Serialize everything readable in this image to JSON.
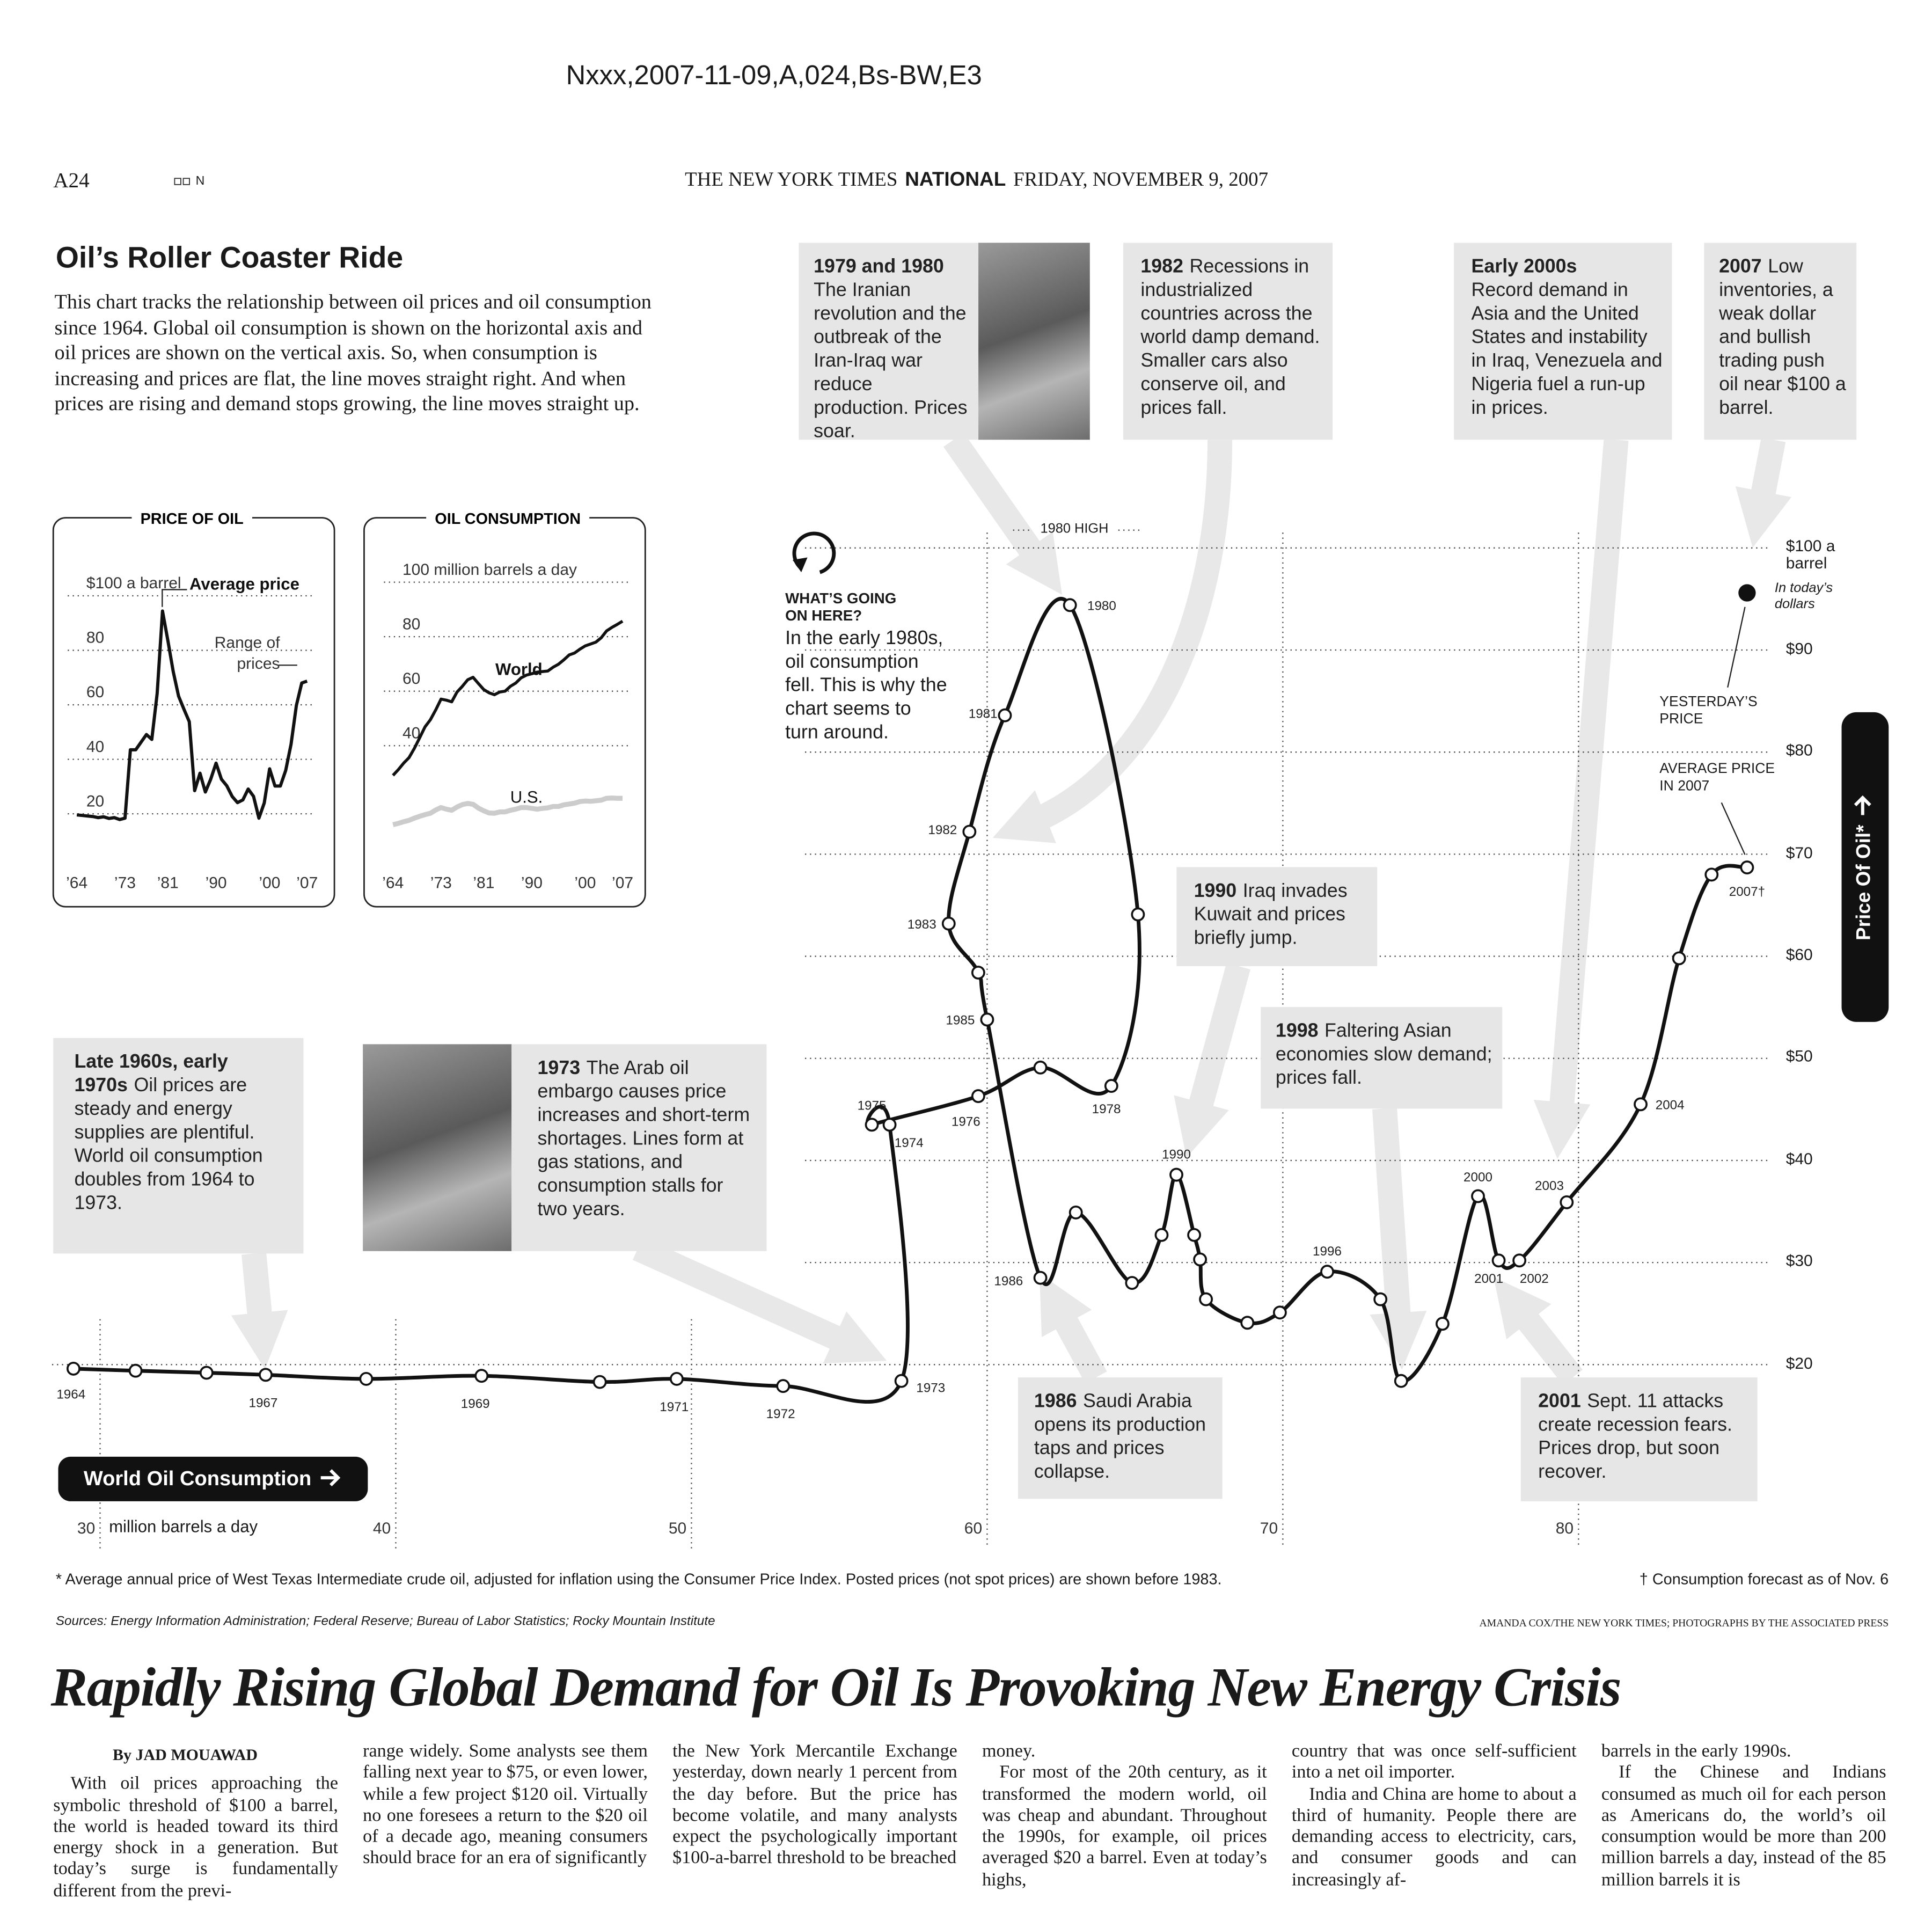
{
  "header": {
    "slug": "Nxxx,2007-11-09,A,024,Bs-BW,E3",
    "page": "A24",
    "edition": "N",
    "masthead": "THE NEW YORK TIMES",
    "section": "NATIONAL",
    "date": "FRIDAY, NOVEMBER 9, 2007"
  },
  "chart_data": [
    {
      "type": "line",
      "title": "Oil’s Roller Coaster Ride",
      "subtitle": "This chart tracks the relationship between oil prices and oil consumption since 1964.  Global oil consumption is shown on the horizontal axis and oil prices are shown on the vertical axis. So, when consumption is increasing and prices are flat, the line moves straight right. And when prices are rising and demand stops growing, the line moves straight up.",
      "xlabel": "World Oil Consumption",
      "xunit": "million barrels a day",
      "ylabel": "Price Of Oil*",
      "x": [
        29.1,
        31.2,
        33.6,
        35.6,
        39.0,
        42.9,
        46.9,
        49.5,
        53.1,
        57.1,
        56.7,
        56.1,
        59.7,
        61.8,
        64.2,
        65.1,
        62.8,
        60.6,
        59.4,
        58.7,
        59.7,
        60.0,
        61.8,
        63.0,
        64.9,
        65.9,
        66.4,
        67.0,
        67.2,
        67.4,
        68.8,
        69.9,
        71.5,
        73.3,
        74.0,
        75.4,
        76.6,
        77.3,
        78.0,
        79.6,
        82.1,
        83.4,
        84.5,
        85.7
      ],
      "values": [
        19.6,
        19.4,
        19.2,
        19.0,
        18.6,
        18.9,
        18.3,
        18.6,
        17.9,
        18.4,
        43.5,
        43.5,
        46.3,
        49.1,
        47.3,
        64.1,
        94.4,
        83.6,
        72.2,
        63.2,
        58.4,
        53.8,
        28.5,
        34.9,
        28.0,
        32.7,
        38.6,
        32.7,
        30.3,
        26.4,
        24.1,
        25.1,
        29.1,
        26.4,
        18.4,
        24.0,
        36.5,
        30.2,
        30.2,
        35.9,
        45.5,
        59.8,
        68.0,
        68.7
      ],
      "point_labels": [
        "1964",
        null,
        null,
        "1967",
        null,
        "1969",
        null,
        "1971",
        "1972",
        "1973",
        "1974",
        "1975",
        "1976",
        null,
        "1978",
        null,
        "1980",
        "1981",
        "1982",
        "1983",
        null,
        "1985",
        "1986",
        null,
        null,
        null,
        "1990",
        null,
        null,
        null,
        null,
        null,
        "1996",
        null,
        null,
        null,
        "2000",
        "2001",
        "2002",
        "2003",
        "2004",
        null,
        null,
        "2007†"
      ],
      "color": "#111111",
      "smooth": true,
      "markers": true,
      "grid": true,
      "xlim": [
        28.5,
        86.3
      ],
      "ylim": [
        2,
        101.5
      ],
      "xticks": [
        30,
        40,
        50,
        60,
        70,
        80
      ],
      "yticks": [
        {
          "value": 20,
          "label": "$20"
        },
        {
          "value": 30,
          "label": "$30"
        },
        {
          "value": 40,
          "label": "$40"
        },
        {
          "value": 50,
          "label": "$50"
        },
        {
          "value": 60,
          "label": "$60"
        },
        {
          "value": 70,
          "label": "$70"
        },
        {
          "value": 80,
          "label": "$80"
        },
        {
          "value": 90,
          "label": "$90"
        },
        {
          "value": 100,
          "label": "$100 a barrel"
        }
      ],
      "marker": {
        "x": 85.7,
        "value": 95.6
      },
      "notes": {
        "high": "1980 HIGH",
        "yesterday": "YESTERDAY’S PRICE",
        "average": "AVERAGE PRICE IN 2007",
        "dollars": "In today’s dollars"
      },
      "callout": {
        "heading": "WHAT’S GOING ON HERE?",
        "text": "In the early 1980s, oil consumption fell. This is why the chart seems to turn around."
      },
      "annotations": [
        {
          "heading": "1979 and 1980",
          "text": "The Iranian revolution and the outbreak of the Iran-Iraq war reduce production. Prices soar."
        },
        {
          "heading": "1982",
          "text": "Recessions in industrialized countries across the world damp demand. Smaller cars also conserve oil, and prices fall."
        },
        {
          "heading": "Early 2000s",
          "text": "Record demand in Asia and the United States and instability in Iraq, Venezuela and Nigeria fuel a run-up in prices."
        },
        {
          "heading": "2007",
          "text": "Low inventories, a weak dollar and bullish trading push oil near $100 a barrel."
        },
        {
          "heading": "1990",
          "text": "Iraq invades Kuwait and prices briefly jump."
        },
        {
          "heading": "1998",
          "text": "Faltering Asian economies slow demand; prices fall."
        },
        {
          "heading": "Late 1960s, early 1970s",
          "text": "Oil prices are steady and energy supplies are plentiful. World oil consumption doubles from 1964 to 1973."
        },
        {
          "heading": "1973",
          "text": "The Arab oil embargo causes price increases and short-term shortages. Lines form at gas stations, and consumption stalls for two years."
        },
        {
          "heading": "1986",
          "text": "Saudi Arabia opens its production taps and prices collapse."
        },
        {
          "heading": "2001",
          "text": "Sept. 11 attacks create recession fears. Prices drop, but soon recover."
        }
      ]
    },
    {
      "type": "line",
      "title": "PRICE OF OIL",
      "annotations": [
        {
          "text": "Range of prices"
        }
      ],
      "x": [
        1964,
        1965,
        1966,
        1967,
        1968,
        1969,
        1970,
        1971,
        1972,
        1973,
        1974,
        1975,
        1976,
        1977,
        1978,
        1979,
        1980,
        1981,
        1982,
        1983,
        1984,
        1985,
        1986,
        1987,
        1988,
        1989,
        1990,
        1991,
        1992,
        1993,
        1994,
        1995,
        1996,
        1997,
        1998,
        1999,
        2000,
        2001,
        2002,
        2003,
        2004,
        2005,
        2006,
        2007
      ],
      "series": [
        {
          "name": "Average price",
          "color": "#111111",
          "values": [
            19.6,
            19.4,
            19.2,
            19.0,
            18.6,
            18.9,
            18.3,
            18.6,
            17.9,
            18.4,
            43.5,
            43.5,
            46.3,
            49.1,
            47.3,
            64.1,
            94.4,
            83.6,
            72.2,
            63.2,
            58.4,
            53.8,
            28.5,
            34.9,
            28.0,
            32.7,
            38.6,
            32.7,
            30.3,
            26.4,
            24.1,
            25.1,
            29.1,
            26.4,
            18.4,
            24.0,
            36.5,
            30.2,
            30.2,
            35.9,
            45.5,
            59.8,
            68.0,
            68.7
          ]
        }
      ],
      "grid": true,
      "xlim": [
        1963,
        2008
      ],
      "ylim": [
        5,
        105
      ],
      "xticks": [
        {
          "value": 1964,
          "label": "’64"
        },
        {
          "value": 1973,
          "label": "’73"
        },
        {
          "value": 1981,
          "label": "’81"
        },
        {
          "value": 1990,
          "label": "’90"
        },
        {
          "value": 2000,
          "label": "’00"
        },
        {
          "value": 2007,
          "label": "’07"
        }
      ],
      "yticks": [
        20,
        40,
        60,
        80,
        {
          "value": 100,
          "label": "$100 a barrel"
        }
      ]
    },
    {
      "type": "line",
      "title": "OIL CONSUMPTION",
      "x": [
        1964,
        1965,
        1966,
        1967,
        1968,
        1969,
        1970,
        1971,
        1972,
        1973,
        1974,
        1975,
        1976,
        1977,
        1978,
        1979,
        1980,
        1981,
        1982,
        1983,
        1984,
        1985,
        1986,
        1987,
        1988,
        1989,
        1990,
        1991,
        1992,
        1993,
        1994,
        1995,
        1996,
        1997,
        1998,
        1999,
        2000,
        2001,
        2002,
        2003,
        2004,
        2005,
        2006,
        2007
      ],
      "series": [
        {
          "name": "World",
          "color": "#111111",
          "values": [
            29.1,
            31.2,
            33.6,
            35.6,
            39.0,
            42.9,
            46.9,
            49.5,
            53.1,
            57.1,
            56.7,
            56.1,
            59.7,
            61.8,
            64.2,
            65.1,
            62.8,
            60.6,
            59.4,
            58.7,
            59.7,
            60.0,
            61.8,
            63.0,
            64.9,
            65.9,
            66.4,
            67.0,
            67.2,
            67.4,
            68.8,
            69.9,
            71.5,
            73.3,
            74.0,
            75.4,
            76.6,
            77.3,
            78.0,
            79.6,
            82.1,
            83.4,
            84.5,
            85.7
          ]
        },
        {
          "name": "U.S.",
          "color": "#cccccc",
          "values": [
            11.0,
            11.5,
            12.1,
            12.6,
            13.4,
            14.1,
            14.7,
            15.2,
            16.4,
            17.3,
            16.7,
            16.3,
            17.5,
            18.4,
            18.8,
            18.5,
            17.1,
            16.1,
            15.3,
            15.2,
            15.7,
            15.7,
            16.3,
            16.7,
            17.3,
            17.3,
            17.0,
            16.7,
            17.0,
            17.2,
            17.7,
            17.7,
            18.3,
            18.6,
            18.9,
            19.5,
            19.7,
            19.6,
            19.8,
            20.0,
            20.7,
            20.8,
            20.7,
            20.7
          ]
        }
      ],
      "grid": true,
      "xlim": [
        1963,
        2008
      ],
      "ylim": [
        0,
        100
      ],
      "xticks": [
        {
          "value": 1964,
          "label": "’64"
        },
        {
          "value": 1973,
          "label": "’73"
        },
        {
          "value": 1981,
          "label": "’81"
        },
        {
          "value": 1990,
          "label": "’90"
        },
        {
          "value": 2000,
          "label": "’00"
        },
        {
          "value": 2007,
          "label": "’07"
        }
      ],
      "yticks": [
        40,
        60,
        80,
        {
          "value": 100,
          "label": "100 million barrels a day"
        }
      ]
    }
  ],
  "graphic": {
    "footnote": "* Average annual price of West Texas Intermediate crude oil, adjusted for inflation using the Consumer Price Index. Posted prices (not spot prices) are shown before 1983.",
    "dagger_note": "† Consumption forecast as of Nov. 6",
    "sources": "Sources: Energy Information Administration; Federal Reserve; Bureau of Labor Statistics; Rocky Mountain Institute",
    "credit": "AMANDA COX/THE NEW YORK TIMES; PHOTOGRAPHS BY THE ASSOCIATED PRESS"
  },
  "article": {
    "headline": "Rapidly Rising Global Demand for Oil Is Provoking New Energy Crisis",
    "byline": "By JAD MOUAWAD",
    "columns": [
      [
        "With oil prices approaching the symbolic threshold of $100 a barrel, the world is headed toward its third energy shock in a generation. But today’s surge is fundamentally different from the previ-"
      ],
      [
        "range widely. Some analysts see them falling next year to $75, or even lower, while a few project $120 oil. Virtually no one foresees a return to the $20 oil of a decade ago, meaning consumers should brace for an era of significantly"
      ],
      [
        "the New York Mercantile Exchange yesterday, down nearly 1 percent from the day before. But the price has become volatile, and many analysts expect the psychologically important $100-a-barrel threshold to be breached"
      ],
      [
        "money.",
        "For most of the 20th century, as it transformed the modern world, oil was cheap and abundant. Throughout the 1990s, for example, oil prices averaged $20 a barrel. Even at today’s highs,"
      ],
      [
        "country that was once self-sufficient into a net oil importer.",
        "India and China are home to about a third of humanity. People there are demanding access to electricity, cars, and consumer goods and can increasingly af-"
      ],
      [
        "barrels in the early 1990s.",
        "If the Chinese and Indians consumed as much oil for each person as Americans do, the world’s oil consumption would be more than 200 million barrels a day, instead of the 85 million barrels it is"
      ]
    ]
  }
}
